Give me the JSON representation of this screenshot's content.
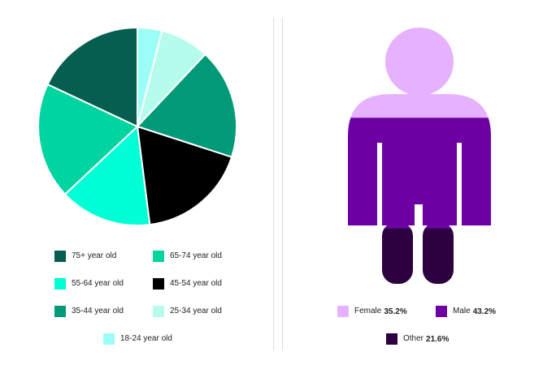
{
  "chart_data": [
    {
      "type": "pie",
      "title": "",
      "categories": [
        "75+ year old",
        "65-74 year old",
        "55-64 year old",
        "45-54 year old",
        "35-44 year old",
        "25-34 year old",
        "18-24 year old"
      ],
      "values": [
        18,
        19,
        15,
        18,
        18,
        8,
        4
      ],
      "colors": [
        "#055E4F",
        "#00D4A0",
        "#00FFD5",
        "#000000",
        "#009A79",
        "#B5FCEC",
        "#9BFFF7"
      ],
      "slice_order": [
        "18-24 year old",
        "25-34 year old",
        "35-44 year old",
        "45-54 year old",
        "55-64 year old",
        "65-74 year old",
        "75+ year old"
      ],
      "legend_position": "bottom"
    },
    {
      "type": "pictogram",
      "title": "",
      "categories": [
        "Female",
        "Male",
        "Other"
      ],
      "values": [
        35.2,
        43.2,
        21.6
      ],
      "value_labels": [
        "35.2%",
        "43.2%",
        "21.6%"
      ],
      "colors": [
        "#E6B1FF",
        "#6D00A3",
        "#2D0040"
      ],
      "legend_position": "bottom"
    }
  ]
}
